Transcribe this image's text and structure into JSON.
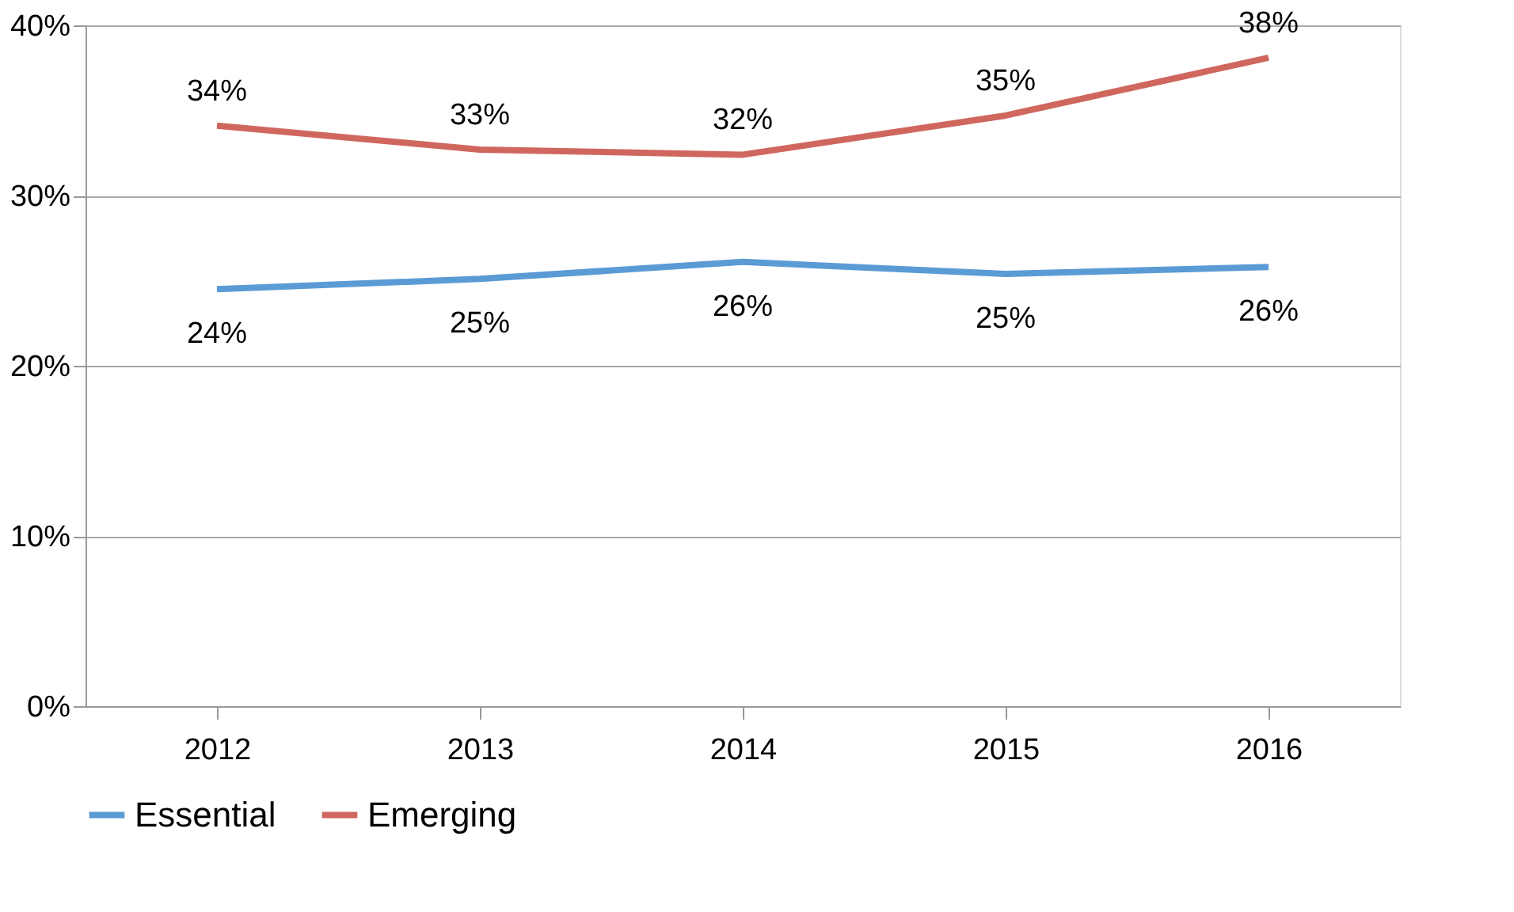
{
  "chart_data": {
    "type": "line",
    "categories": [
      "2012",
      "2013",
      "2014",
      "2015",
      "2016"
    ],
    "series": [
      {
        "name": "Essential",
        "color": "#5b9bd5",
        "values": [
          24.5,
          25.1,
          26.1,
          25.4,
          25.8
        ],
        "value_labels": [
          "24%",
          "25%",
          "26%",
          "25%",
          "26%"
        ]
      },
      {
        "name": "Emerging",
        "color": "#d0675f",
        "values": [
          34.1,
          32.7,
          32.4,
          34.7,
          38.1
        ],
        "value_labels": [
          "34%",
          "33%",
          "32%",
          "35%",
          "38%"
        ]
      }
    ],
    "ylim": [
      0,
      40
    ],
    "yticks": [
      {
        "value": 0,
        "label": "0%"
      },
      {
        "value": 10,
        "label": "10%"
      },
      {
        "value": 20,
        "label": "20%"
      },
      {
        "value": 30,
        "label": "30%"
      },
      {
        "value": 40,
        "label": "40%"
      }
    ],
    "grid": "y",
    "legend": "bottom",
    "marker": "none",
    "line_style": "solid"
  }
}
